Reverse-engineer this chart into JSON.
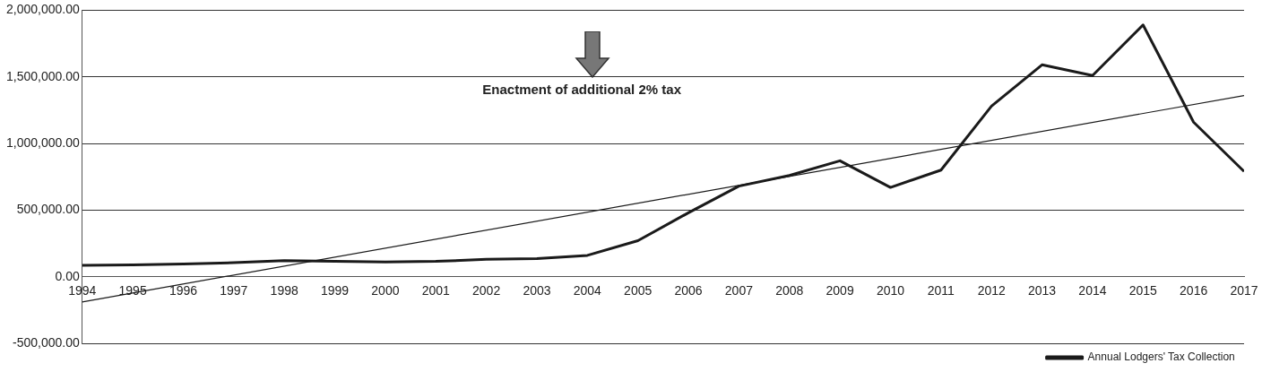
{
  "chart_data": {
    "type": "line",
    "categories": [
      "1994",
      "1995",
      "1996",
      "1997",
      "1998",
      "1999",
      "2000",
      "2001",
      "2002",
      "2003",
      "2004",
      "2005",
      "2006",
      "2007",
      "2008",
      "2009",
      "2010",
      "2011",
      "2012",
      "2013",
      "2014",
      "2015",
      "2016",
      "2017"
    ],
    "series": [
      {
        "name": "Annual Lodgers' Tax Collection",
        "color": "#1a1a1a",
        "values": [
          85000,
          88000,
          95000,
          105000,
          120000,
          115000,
          110000,
          115000,
          130000,
          135000,
          160000,
          270000,
          480000,
          680000,
          760000,
          870000,
          670000,
          800000,
          1280000,
          1590000,
          1510000,
          1890000,
          1160000,
          790000
        ]
      },
      {
        "type": "line",
        "color": "#1a1a1a",
        "values": [
          -190000,
          null,
          null,
          null,
          null,
          null,
          null,
          null,
          null,
          null,
          null,
          null,
          null,
          null,
          null,
          null,
          null,
          null,
          null,
          null,
          null,
          null,
          null,
          1360000
        ]
      }
    ],
    "ylim": [
      -500000,
      2000000
    ],
    "yticks": [
      {
        "value": -500000,
        "label": "-500,000.00"
      },
      {
        "value": 0,
        "label": "0.00"
      },
      {
        "value": 500000,
        "label": "500,000.00"
      },
      {
        "value": 1000000,
        "label": "1,000,000.00"
      },
      {
        "value": 1500000,
        "label": "1,500,000.00"
      },
      {
        "value": 2000000,
        "label": "2,000,000.00"
      }
    ],
    "grid": "y",
    "legend": "bottom right",
    "marker": "none",
    "line_style": "solid",
    "annotations": [
      "Enactment of additional 2% tax"
    ]
  }
}
